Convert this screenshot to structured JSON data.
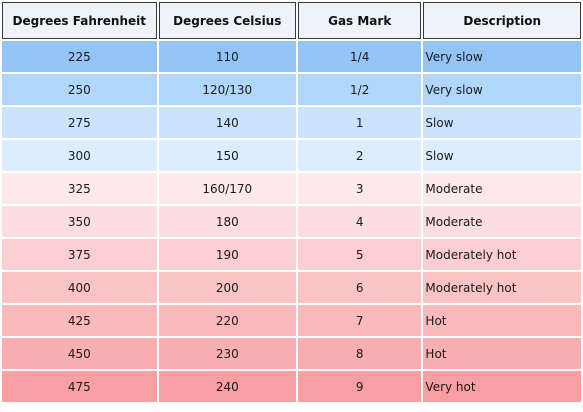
{
  "table": {
    "headers": [
      "Degrees Fahrenheit",
      "Degrees Celsius",
      "Gas Mark",
      "Description"
    ],
    "rows": [
      {
        "fahrenheit": "225",
        "celsius": "110",
        "gas_mark": "1/4",
        "description": "Very slow",
        "color": "#93c4f5"
      },
      {
        "fahrenheit": "250",
        "celsius": "120/130",
        "gas_mark": "1/2",
        "description": "Very slow",
        "color": "#b1d6fb"
      },
      {
        "fahrenheit": "275",
        "celsius": "140",
        "gas_mark": "1",
        "description": "Slow",
        "color": "#cce3fd"
      },
      {
        "fahrenheit": "300",
        "celsius": "150",
        "gas_mark": "2",
        "description": "Slow",
        "color": "#dceefe"
      },
      {
        "fahrenheit": "325",
        "celsius": "160/170",
        "gas_mark": "3",
        "description": "Moderate",
        "color": "#fde8ea"
      },
      {
        "fahrenheit": "350",
        "celsius": "180",
        "gas_mark": "4",
        "description": "Moderate",
        "color": "#fcdde0"
      },
      {
        "fahrenheit": "375",
        "celsius": "190",
        "gas_mark": "5",
        "description": "Moderately hot",
        "color": "#fbcfd2"
      },
      {
        "fahrenheit": "400",
        "celsius": "200",
        "gas_mark": "6",
        "description": "Moderately hot",
        "color": "#fac4c7"
      },
      {
        "fahrenheit": "425",
        "celsius": "220",
        "gas_mark": "7",
        "description": "Hot",
        "color": "#fab9bc"
      },
      {
        "fahrenheit": "450",
        "celsius": "230",
        "gas_mark": "8",
        "description": "Hot",
        "color": "#f9aeb1"
      },
      {
        "fahrenheit": "475",
        "celsius": "240",
        "gas_mark": "9",
        "description": "Very hot",
        "color": "#f89fa3"
      }
    ]
  }
}
